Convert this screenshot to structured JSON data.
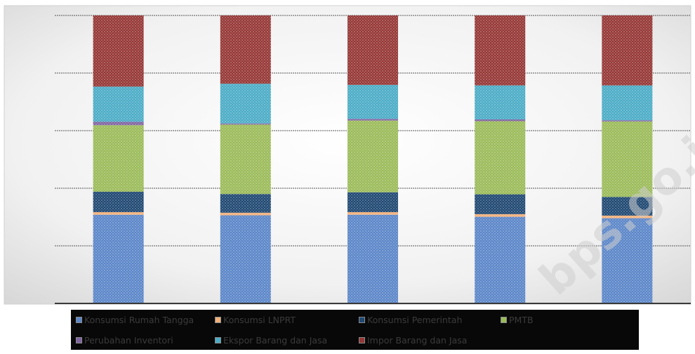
{
  "chart_data": {
    "type": "bar",
    "stacked": true,
    "percent_stacked": true,
    "categories": [
      "",
      "",
      "",
      "",
      ""
    ],
    "series": [
      {
        "name": "Konsumsi Rumah Tangga",
        "color": "#5b86c8",
        "values": [
          30.8,
          30.6,
          30.8,
          30.1,
          29.6
        ]
      },
      {
        "name": "Konsumsi LNPRT",
        "color": "#f2b07a",
        "values": [
          0.9,
          0.9,
          0.9,
          0.9,
          0.9
        ]
      },
      {
        "name": "Konsumsi Pemerintah",
        "color": "#1f4872",
        "values": [
          7.1,
          6.5,
          6.9,
          6.9,
          6.5
        ]
      },
      {
        "name": "PMTB",
        "color": "#9bbb59",
        "values": [
          23.1,
          24.1,
          24.9,
          25.4,
          26.2
        ]
      },
      {
        "name": "Perubahan Inventori",
        "color": "#8064a2",
        "values": [
          1.2,
          0.4,
          0.6,
          0.6,
          0.4
        ]
      },
      {
        "name": "Ekspor Barang dan Jasa",
        "color": "#4bacc6",
        "values": [
          12.2,
          13.8,
          11.8,
          11.8,
          12.1
        ]
      },
      {
        "name": "Impor Barang dan Jasa",
        "color": "#953735",
        "values": [
          24.7,
          23.7,
          24.1,
          24.3,
          24.3
        ]
      }
    ],
    "ylim": [
      0,
      100
    ],
    "grid": true,
    "legend_position": "bottom"
  },
  "watermark": "bps.go.id"
}
